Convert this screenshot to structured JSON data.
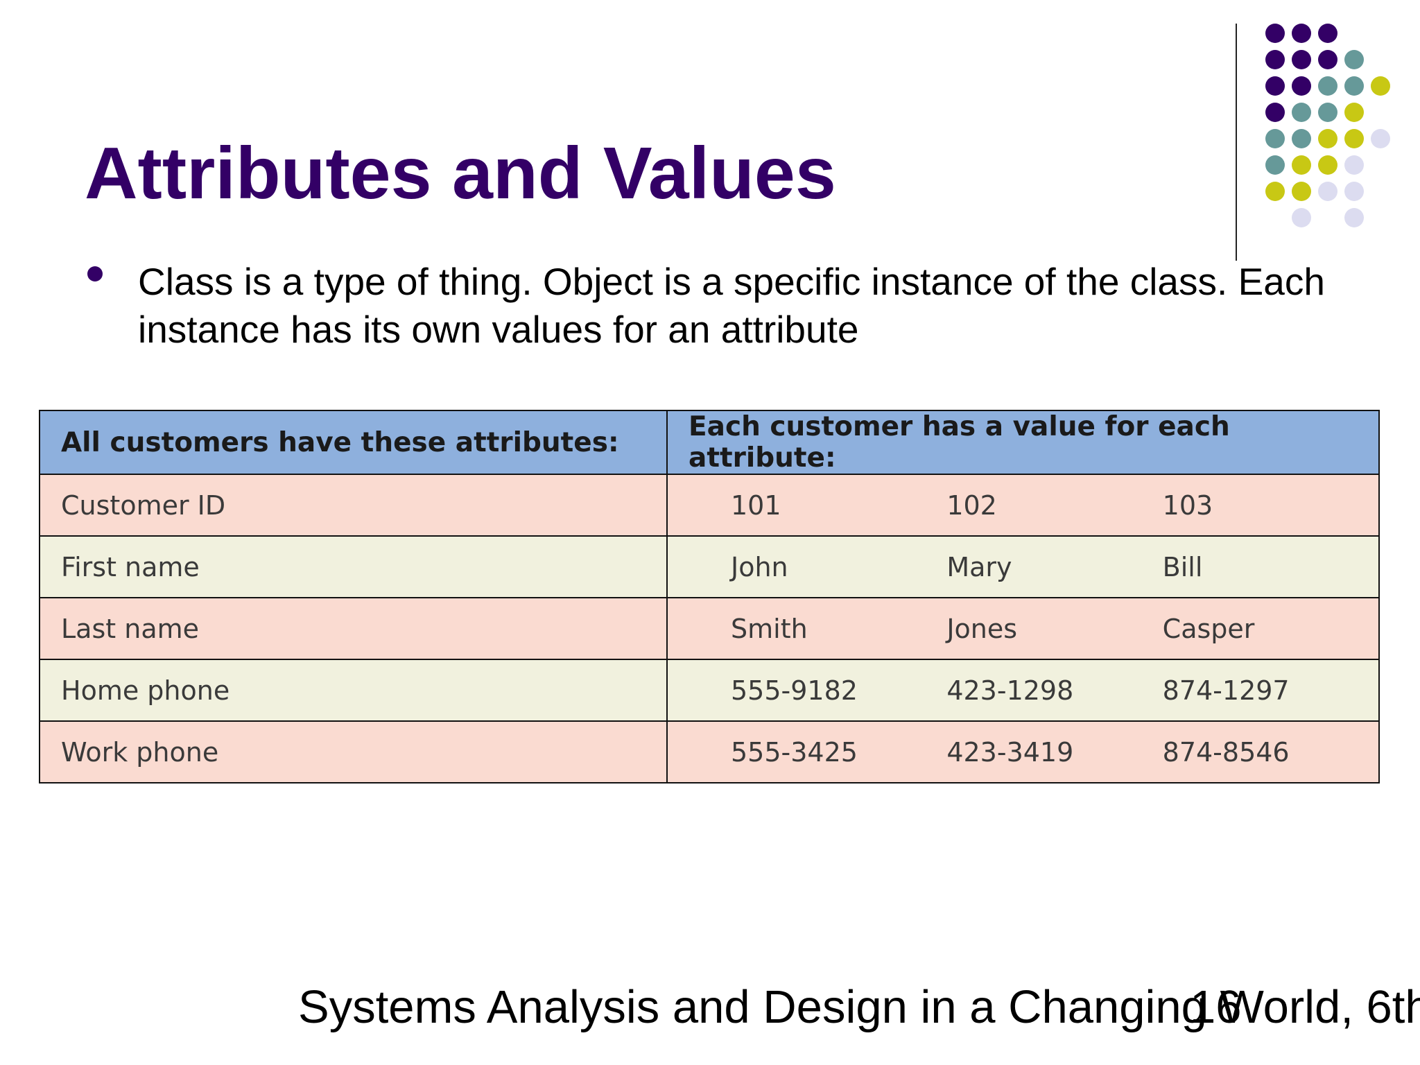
{
  "slide": {
    "title": "Attributes and Values",
    "bullet": "Class is a type of thing. Object is a specific instance of the class. Each instance has its own values for an attribute",
    "footer": "Systems Analysis and Design in a Changing World, 6th",
    "page_number": "16"
  },
  "table": {
    "headers": [
      "All customers have these attributes:",
      "Each customer has a value for each attribute:"
    ],
    "rows": [
      {
        "attribute": "Customer ID",
        "values": [
          "101",
          "102",
          "103"
        ]
      },
      {
        "attribute": "First name",
        "values": [
          "John",
          "Mary",
          "Bill"
        ]
      },
      {
        "attribute": "Last name",
        "values": [
          "Smith",
          "Jones",
          "Casper"
        ]
      },
      {
        "attribute": "Home phone",
        "values": [
          "555-9182",
          "423-1298",
          "874-1297"
        ]
      },
      {
        "attribute": "Work phone",
        "values": [
          "555-3425",
          "423-3419",
          "874-8546"
        ]
      }
    ]
  },
  "colors": {
    "title": "#330066",
    "header_bg": "#8eb0dd",
    "row_pink": "#fadbd1",
    "row_cream": "#f1f1de",
    "dot_purple": "#330066",
    "dot_teal": "#669999",
    "dot_olive": "#c8c814",
    "dot_lavender": "#dcdcf0"
  },
  "decoration": {
    "dot_pattern": [
      [
        "purple",
        "purple",
        "purple",
        null,
        null
      ],
      [
        "purple",
        "purple",
        "purple",
        "teal",
        null
      ],
      [
        "purple",
        "purple",
        "teal",
        "teal",
        "olive"
      ],
      [
        "purple",
        "teal",
        "teal",
        "olive",
        null
      ],
      [
        "teal",
        "teal",
        "olive",
        "olive",
        "lavender"
      ],
      [
        "teal",
        "olive",
        "olive",
        "lavender",
        null
      ],
      [
        "olive",
        "olive",
        "lavender",
        "lavender",
        null
      ],
      [
        null,
        "lavender",
        null,
        "lavender",
        null
      ]
    ]
  }
}
